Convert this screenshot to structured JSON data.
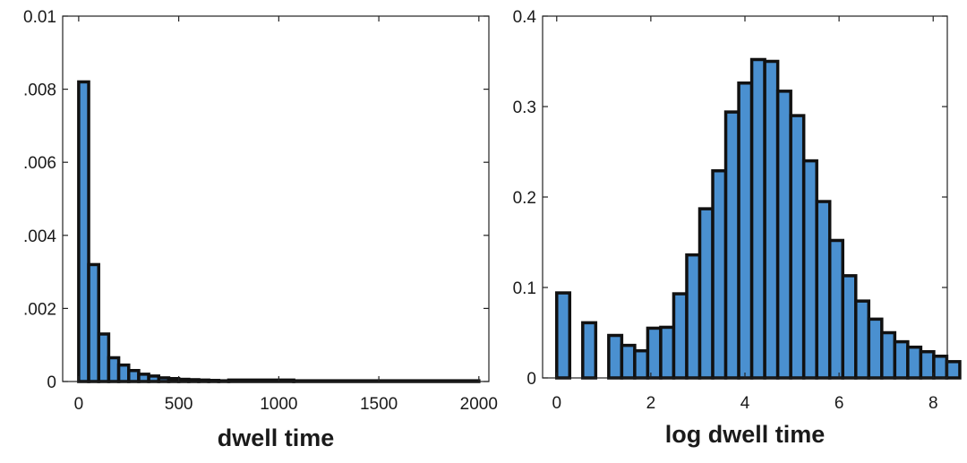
{
  "chart_data": [
    {
      "type": "bar",
      "xlabel": "dwell time",
      "ylabel": "",
      "xlim": [
        -80,
        2050
      ],
      "ylim": [
        0,
        0.01
      ],
      "xticks": [
        0,
        500,
        1000,
        1500,
        2000
      ],
      "yticks": [
        0,
        0.002,
        0.004,
        0.006,
        0.008,
        0.01
      ],
      "xtick_labels": [
        "0",
        "500",
        "1000",
        "1500",
        "2000"
      ],
      "ytick_labels": [
        "0",
        ".002",
        ".004",
        ".006",
        ".008",
        "0.01"
      ],
      "bin_edges": [
        0,
        50,
        100,
        150,
        200,
        250,
        300,
        350,
        400,
        450,
        500,
        550,
        600,
        650,
        700,
        750,
        1075,
        2000
      ],
      "values": [
        0.0082,
        0.0032,
        0.0013,
        0.00065,
        0.00045,
        0.0003,
        0.0002,
        0.00015,
        0.0001,
        8e-05,
        6e-05,
        5e-05,
        4e-05,
        3e-05,
        2e-05,
        4e-05,
        2e-05
      ],
      "bar_color": "#4a90d0",
      "grid": false
    },
    {
      "type": "bar",
      "xlabel": "log dwell time",
      "ylabel": "",
      "xlim": [
        -0.3,
        8.3
      ],
      "ylim": [
        0,
        0.4
      ],
      "xticks": [
        0,
        2,
        4,
        6,
        8
      ],
      "yticks": [
        0,
        0.1,
        0.2,
        0.3,
        0.4
      ],
      "xtick_labels": [
        "0",
        "2",
        "4",
        "6",
        "8"
      ],
      "ytick_labels": [
        "0",
        "0.1",
        "0.2",
        "0.3",
        "0.4"
      ],
      "bin_start": 0,
      "bin_width": 0.2763,
      "values": [
        0.094,
        0.0,
        0.061,
        0.0,
        0.047,
        0.036,
        0.03,
        0.055,
        0.056,
        0.093,
        0.136,
        0.187,
        0.229,
        0.294,
        0.326,
        0.352,
        0.35,
        0.317,
        0.29,
        0.24,
        0.195,
        0.152,
        0.113,
        0.085,
        0.065,
        0.05,
        0.04,
        0.034,
        0.029,
        0.024,
        0.018
      ],
      "bar_color": "#4a90d0",
      "grid": false
    }
  ]
}
